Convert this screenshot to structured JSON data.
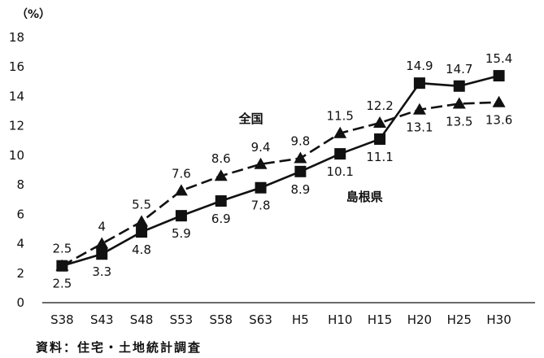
{
  "chart_data": {
    "type": "line",
    "unit_label": "（%）",
    "categories": [
      "S38",
      "S43",
      "S48",
      "S53",
      "S58",
      "S63",
      "H5",
      "H10",
      "H15",
      "H20",
      "H25",
      "H30"
    ],
    "ylim": [
      0,
      18
    ],
    "yticks": [
      0,
      2,
      4,
      6,
      8,
      10,
      12,
      14,
      16,
      18
    ],
    "grid": false,
    "series": [
      {
        "name": "全国",
        "marker": "triangle",
        "line_style": "dashed",
        "values": [
          2.5,
          4.0,
          5.5,
          7.6,
          8.6,
          9.4,
          9.8,
          11.5,
          12.2,
          13.1,
          13.5,
          13.6
        ],
        "labels": [
          "2.5",
          "4",
          "5.5",
          "7.6",
          "8.6",
          "9.4",
          "9.8",
          "11.5",
          "12.2",
          "13.1",
          "13.5",
          "13.6"
        ]
      },
      {
        "name": "島根県",
        "marker": "square",
        "line_style": "solid",
        "values": [
          2.5,
          3.3,
          4.8,
          5.9,
          6.9,
          7.8,
          8.9,
          10.1,
          11.1,
          14.9,
          14.7,
          15.4
        ],
        "labels": [
          "2.5",
          "3.3",
          "4.8",
          "5.9",
          "6.9",
          "7.8",
          "8.9",
          "10.1",
          "11.1",
          "14.9",
          "14.7",
          "15.4"
        ]
      }
    ],
    "source": "資料：住宅・土地統計調査",
    "color": "#111111"
  }
}
